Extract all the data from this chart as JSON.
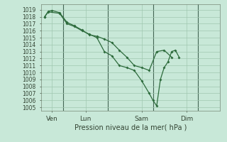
{
  "title": "",
  "xlabel": "Pression niveau de la mer( hPa )",
  "background_color": "#c8e8d8",
  "grid_color": "#a0c8b0",
  "line_color": "#2d6b3c",
  "vline_color": "#446655",
  "ylim": [
    1004.5,
    1019.8
  ],
  "yticks": [
    1005,
    1006,
    1007,
    1008,
    1009,
    1010,
    1011,
    1012,
    1013,
    1014,
    1015,
    1016,
    1017,
    1018,
    1019
  ],
  "xlim": [
    0,
    24
  ],
  "xtick_positions": [
    1.5,
    6,
    13.5,
    19.5
  ],
  "xtick_labels": [
    "Ven",
    "Lun",
    "Sam",
    "Dim"
  ],
  "vline_positions": [
    3,
    9,
    15,
    21
  ],
  "series1": [
    [
      0.5,
      1018.0
    ],
    [
      1.0,
      1018.8
    ],
    [
      1.5,
      1018.9
    ],
    [
      2.5,
      1018.6
    ],
    [
      3.5,
      1017.2
    ],
    [
      4.5,
      1016.7
    ],
    [
      5.5,
      1016.1
    ],
    [
      6.5,
      1015.4
    ],
    [
      7.5,
      1015.2
    ],
    [
      8.5,
      1014.8
    ],
    [
      9.5,
      1014.3
    ],
    [
      10.5,
      1013.2
    ],
    [
      11.5,
      1012.2
    ],
    [
      12.5,
      1011.0
    ],
    [
      13.5,
      1010.7
    ],
    [
      14.5,
      1010.3
    ],
    [
      15.5,
      1013.0
    ],
    [
      16.5,
      1013.2
    ],
    [
      17.5,
      1012.2
    ]
  ],
  "series2": [
    [
      0.5,
      1018.0
    ],
    [
      1.0,
      1018.7
    ],
    [
      2.5,
      1018.5
    ],
    [
      3.5,
      1017.0
    ],
    [
      4.5,
      1016.6
    ],
    [
      5.5,
      1016.0
    ],
    [
      6.5,
      1015.5
    ],
    [
      7.5,
      1015.0
    ],
    [
      8.5,
      1013.0
    ],
    [
      9.5,
      1012.4
    ],
    [
      10.5,
      1011.0
    ],
    [
      11.5,
      1010.7
    ],
    [
      12.5,
      1010.3
    ],
    [
      13.5,
      1008.8
    ],
    [
      14.5,
      1007.0
    ],
    [
      15.0,
      1006.0
    ],
    [
      15.5,
      1005.2
    ],
    [
      16.0,
      1009.0
    ],
    [
      16.5,
      1010.7
    ],
    [
      17.0,
      1011.5
    ],
    [
      17.5,
      1013.0
    ],
    [
      18.0,
      1013.2
    ],
    [
      18.5,
      1012.2
    ]
  ]
}
